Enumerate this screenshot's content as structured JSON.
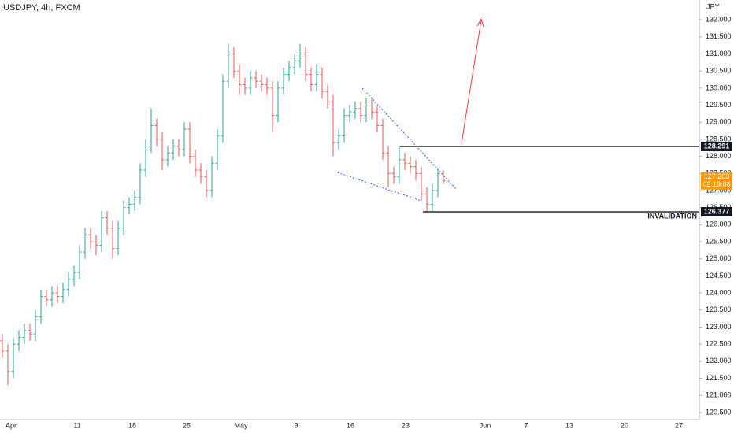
{
  "chart_data": {
    "type": "ohlc",
    "title": "USDJPY, 4h, FXCM",
    "unit": "JPY",
    "up_color": "#26a69a",
    "down_color": "#ef5350",
    "open": [
      122.6,
      122.3,
      121.7,
      122.5,
      122.7,
      122.9,
      122.8,
      123.3,
      123.9,
      123.8,
      124.0,
      123.9,
      124.1,
      124.4,
      124.6,
      125.2,
      125.7,
      125.5,
      125.4,
      126.2,
      125.9,
      125.3,
      125.9,
      126.5,
      126.6,
      126.8,
      127.6,
      128.3,
      128.9,
      128.5,
      127.9,
      128.1,
      128.3,
      128.2,
      128.8,
      128.0,
      127.6,
      127.4,
      127.0,
      127.8,
      128.6,
      130.2,
      131.0,
      130.5,
      130.1,
      130.0,
      130.3,
      130.2,
      130.1,
      130.0,
      129.2,
      130.0,
      130.4,
      130.6,
      130.8,
      131.0,
      130.4,
      130.1,
      130.4,
      129.9,
      129.6,
      128.4,
      128.6,
      129.2,
      129.3,
      129.4,
      129.2,
      129.5,
      129.3,
      128.9,
      128.1,
      127.5,
      127.4,
      127.9,
      127.8,
      127.7,
      127.5,
      126.9,
      126.6,
      127.0,
      127.5
    ],
    "high": [
      122.8,
      122.5,
      122.7,
      122.9,
      123.1,
      123.1,
      123.5,
      124.1,
      124.1,
      124.2,
      124.2,
      124.3,
      124.6,
      124.8,
      125.4,
      125.9,
      125.9,
      125.7,
      126.4,
      126.4,
      126.1,
      126.1,
      126.7,
      126.8,
      127.0,
      127.8,
      128.5,
      129.4,
      129.1,
      128.7,
      128.3,
      128.5,
      128.5,
      129.0,
      129.0,
      128.2,
      127.8,
      127.6,
      128.0,
      128.8,
      130.4,
      131.3,
      131.2,
      130.7,
      130.3,
      130.5,
      130.5,
      130.4,
      130.3,
      130.2,
      130.2,
      130.6,
      130.8,
      131.0,
      131.3,
      131.2,
      130.6,
      130.7,
      130.6,
      130.1,
      129.8,
      128.8,
      129.4,
      129.5,
      129.6,
      129.6,
      129.7,
      129.7,
      129.5,
      129.1,
      128.3,
      127.7,
      128.3,
      128.1,
      128.0,
      127.9,
      127.7,
      127.1,
      127.2,
      127.6,
      127.6
    ],
    "low": [
      122.1,
      121.3,
      121.5,
      122.3,
      122.5,
      122.6,
      122.6,
      123.1,
      123.6,
      123.6,
      123.7,
      123.7,
      123.9,
      124.2,
      124.4,
      125.0,
      125.3,
      125.1,
      125.2,
      125.7,
      125.0,
      125.1,
      125.7,
      126.3,
      126.4,
      126.6,
      127.4,
      128.1,
      128.3,
      127.6,
      127.7,
      127.9,
      128.0,
      128.0,
      127.8,
      127.4,
      127.2,
      126.8,
      126.8,
      127.6,
      128.4,
      130.0,
      130.3,
      129.8,
      129.8,
      129.8,
      130.0,
      129.9,
      129.8,
      128.7,
      129.0,
      129.8,
      130.2,
      130.4,
      130.6,
      130.2,
      129.9,
      129.9,
      129.7,
      129.4,
      128.0,
      128.2,
      128.4,
      129.0,
      129.1,
      129.0,
      129.0,
      129.1,
      128.7,
      127.9,
      127.1,
      127.2,
      127.2,
      127.6,
      127.5,
      127.3,
      126.7,
      126.377,
      126.4,
      126.8,
      127.2
    ],
    "close": [
      122.3,
      121.7,
      122.5,
      122.7,
      122.9,
      122.8,
      123.3,
      123.9,
      123.8,
      124.0,
      123.9,
      124.1,
      124.4,
      124.6,
      125.2,
      125.7,
      125.5,
      125.4,
      126.2,
      125.9,
      125.3,
      125.9,
      126.5,
      126.6,
      126.8,
      127.6,
      128.3,
      128.9,
      128.5,
      127.9,
      128.1,
      128.3,
      128.2,
      128.8,
      128.0,
      127.6,
      127.4,
      127.0,
      127.8,
      128.6,
      130.2,
      131.0,
      130.5,
      130.1,
      130.0,
      130.3,
      130.2,
      130.1,
      130.0,
      129.2,
      130.0,
      130.4,
      130.6,
      130.8,
      131.0,
      130.4,
      130.1,
      130.4,
      129.9,
      129.6,
      128.4,
      128.6,
      129.2,
      129.3,
      129.4,
      129.2,
      129.5,
      129.3,
      128.9,
      128.1,
      127.5,
      127.4,
      127.9,
      127.8,
      127.7,
      127.5,
      126.9,
      126.6,
      127.0,
      127.5,
      127.283
    ],
    "countdown": "02:19:08",
    "x_labels": [
      "Apr",
      "11",
      "18",
      "25",
      "May",
      "9",
      "16",
      "23",
      "Jun",
      "7",
      "13",
      "20",
      "27"
    ],
    "ylim": [
      120.29,
      132.58
    ],
    "yticks": [
      {
        "value": 120.5,
        "label": "120.500"
      },
      {
        "value": 121,
        "label": "121.000"
      },
      {
        "value": 121.5,
        "label": "121.500"
      },
      {
        "value": 122,
        "label": "122.000"
      },
      {
        "value": 122.5,
        "label": "122.500"
      },
      {
        "value": 123,
        "label": "123.000"
      },
      {
        "value": 123.5,
        "label": "123.500"
      },
      {
        "value": 124,
        "label": "124.000"
      },
      {
        "value": 124.5,
        "label": "124.500"
      },
      {
        "value": 125,
        "label": "125.000"
      },
      {
        "value": 125.5,
        "label": "125.500"
      },
      {
        "value": 126,
        "label": "126.000"
      },
      {
        "value": 126.5,
        "label": "126.500"
      },
      {
        "value": 127,
        "label": "127.000"
      },
      {
        "value": 127.5,
        "label": "127.500"
      },
      {
        "value": 128,
        "label": "128.000"
      },
      {
        "value": 128.5,
        "label": "128.500"
      },
      {
        "value": 129,
        "label": "129.000"
      },
      {
        "value": 129.5,
        "label": "129.500"
      },
      {
        "value": 130,
        "label": "130.000"
      },
      {
        "value": 130.5,
        "label": "130.500"
      },
      {
        "value": 131,
        "label": "131.000"
      },
      {
        "value": 131.5,
        "label": "131.500"
      },
      {
        "value": 132,
        "label": "132.000"
      }
    ],
    "levels": [
      {
        "value": 128.291
      },
      {
        "value": 126.377,
        "annotation": "INVALIDATION"
      }
    ],
    "last_price_color": "#ff9800"
  }
}
